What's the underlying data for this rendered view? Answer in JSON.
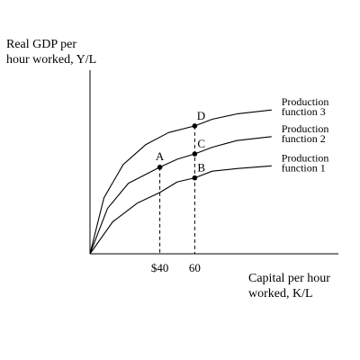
{
  "chart_data": {
    "type": "line",
    "ylabel": [
      "Real GDP per",
      "hour worked, Y/L"
    ],
    "xlabel": [
      "Capital per hour",
      "worked, K/L"
    ],
    "x_ticks": [
      "$40",
      "60"
    ],
    "series": [
      {
        "name": "Production function 1",
        "label_lines": [
          "Production",
          "function 1"
        ],
        "points": [
          [
            0,
            0
          ],
          [
            13,
            24
          ],
          [
            27,
            38
          ],
          [
            40,
            46
          ],
          [
            50,
            54
          ],
          [
            60,
            57
          ],
          [
            70,
            62
          ],
          [
            84,
            64
          ],
          [
            104,
            66
          ]
        ]
      },
      {
        "name": "Production function 2",
        "label_lines": [
          "Production",
          "function 2"
        ],
        "points": [
          [
            0,
            0
          ],
          [
            10,
            34
          ],
          [
            22,
            53
          ],
          [
            40,
            65
          ],
          [
            50,
            71
          ],
          [
            60,
            75
          ],
          [
            70,
            80
          ],
          [
            84,
            85
          ],
          [
            104,
            88
          ]
        ]
      },
      {
        "name": "Production function 3",
        "label_lines": [
          "Production",
          "function 3"
        ],
        "points": [
          [
            0,
            0
          ],
          [
            8,
            42
          ],
          [
            19,
            67
          ],
          [
            32,
            82
          ],
          [
            45,
            91
          ],
          [
            60,
            96
          ],
          [
            70,
            101
          ],
          [
            84,
            105
          ],
          [
            104,
            108
          ]
        ]
      }
    ],
    "points": [
      {
        "label": "A",
        "x": 40,
        "y": 65,
        "series": "Production function 2"
      },
      {
        "label": "B",
        "x": 60,
        "y": 57,
        "series": "Production function 1"
      },
      {
        "label": "C",
        "x": 60,
        "y": 75,
        "series": "Production function 2"
      },
      {
        "label": "D",
        "x": 60,
        "y": 96,
        "series": "Production function 3"
      }
    ],
    "drop_lines_x": [
      40,
      60
    ],
    "colors": {
      "line": "#000000",
      "axis": "#000000",
      "background": "#ffffff"
    }
  }
}
